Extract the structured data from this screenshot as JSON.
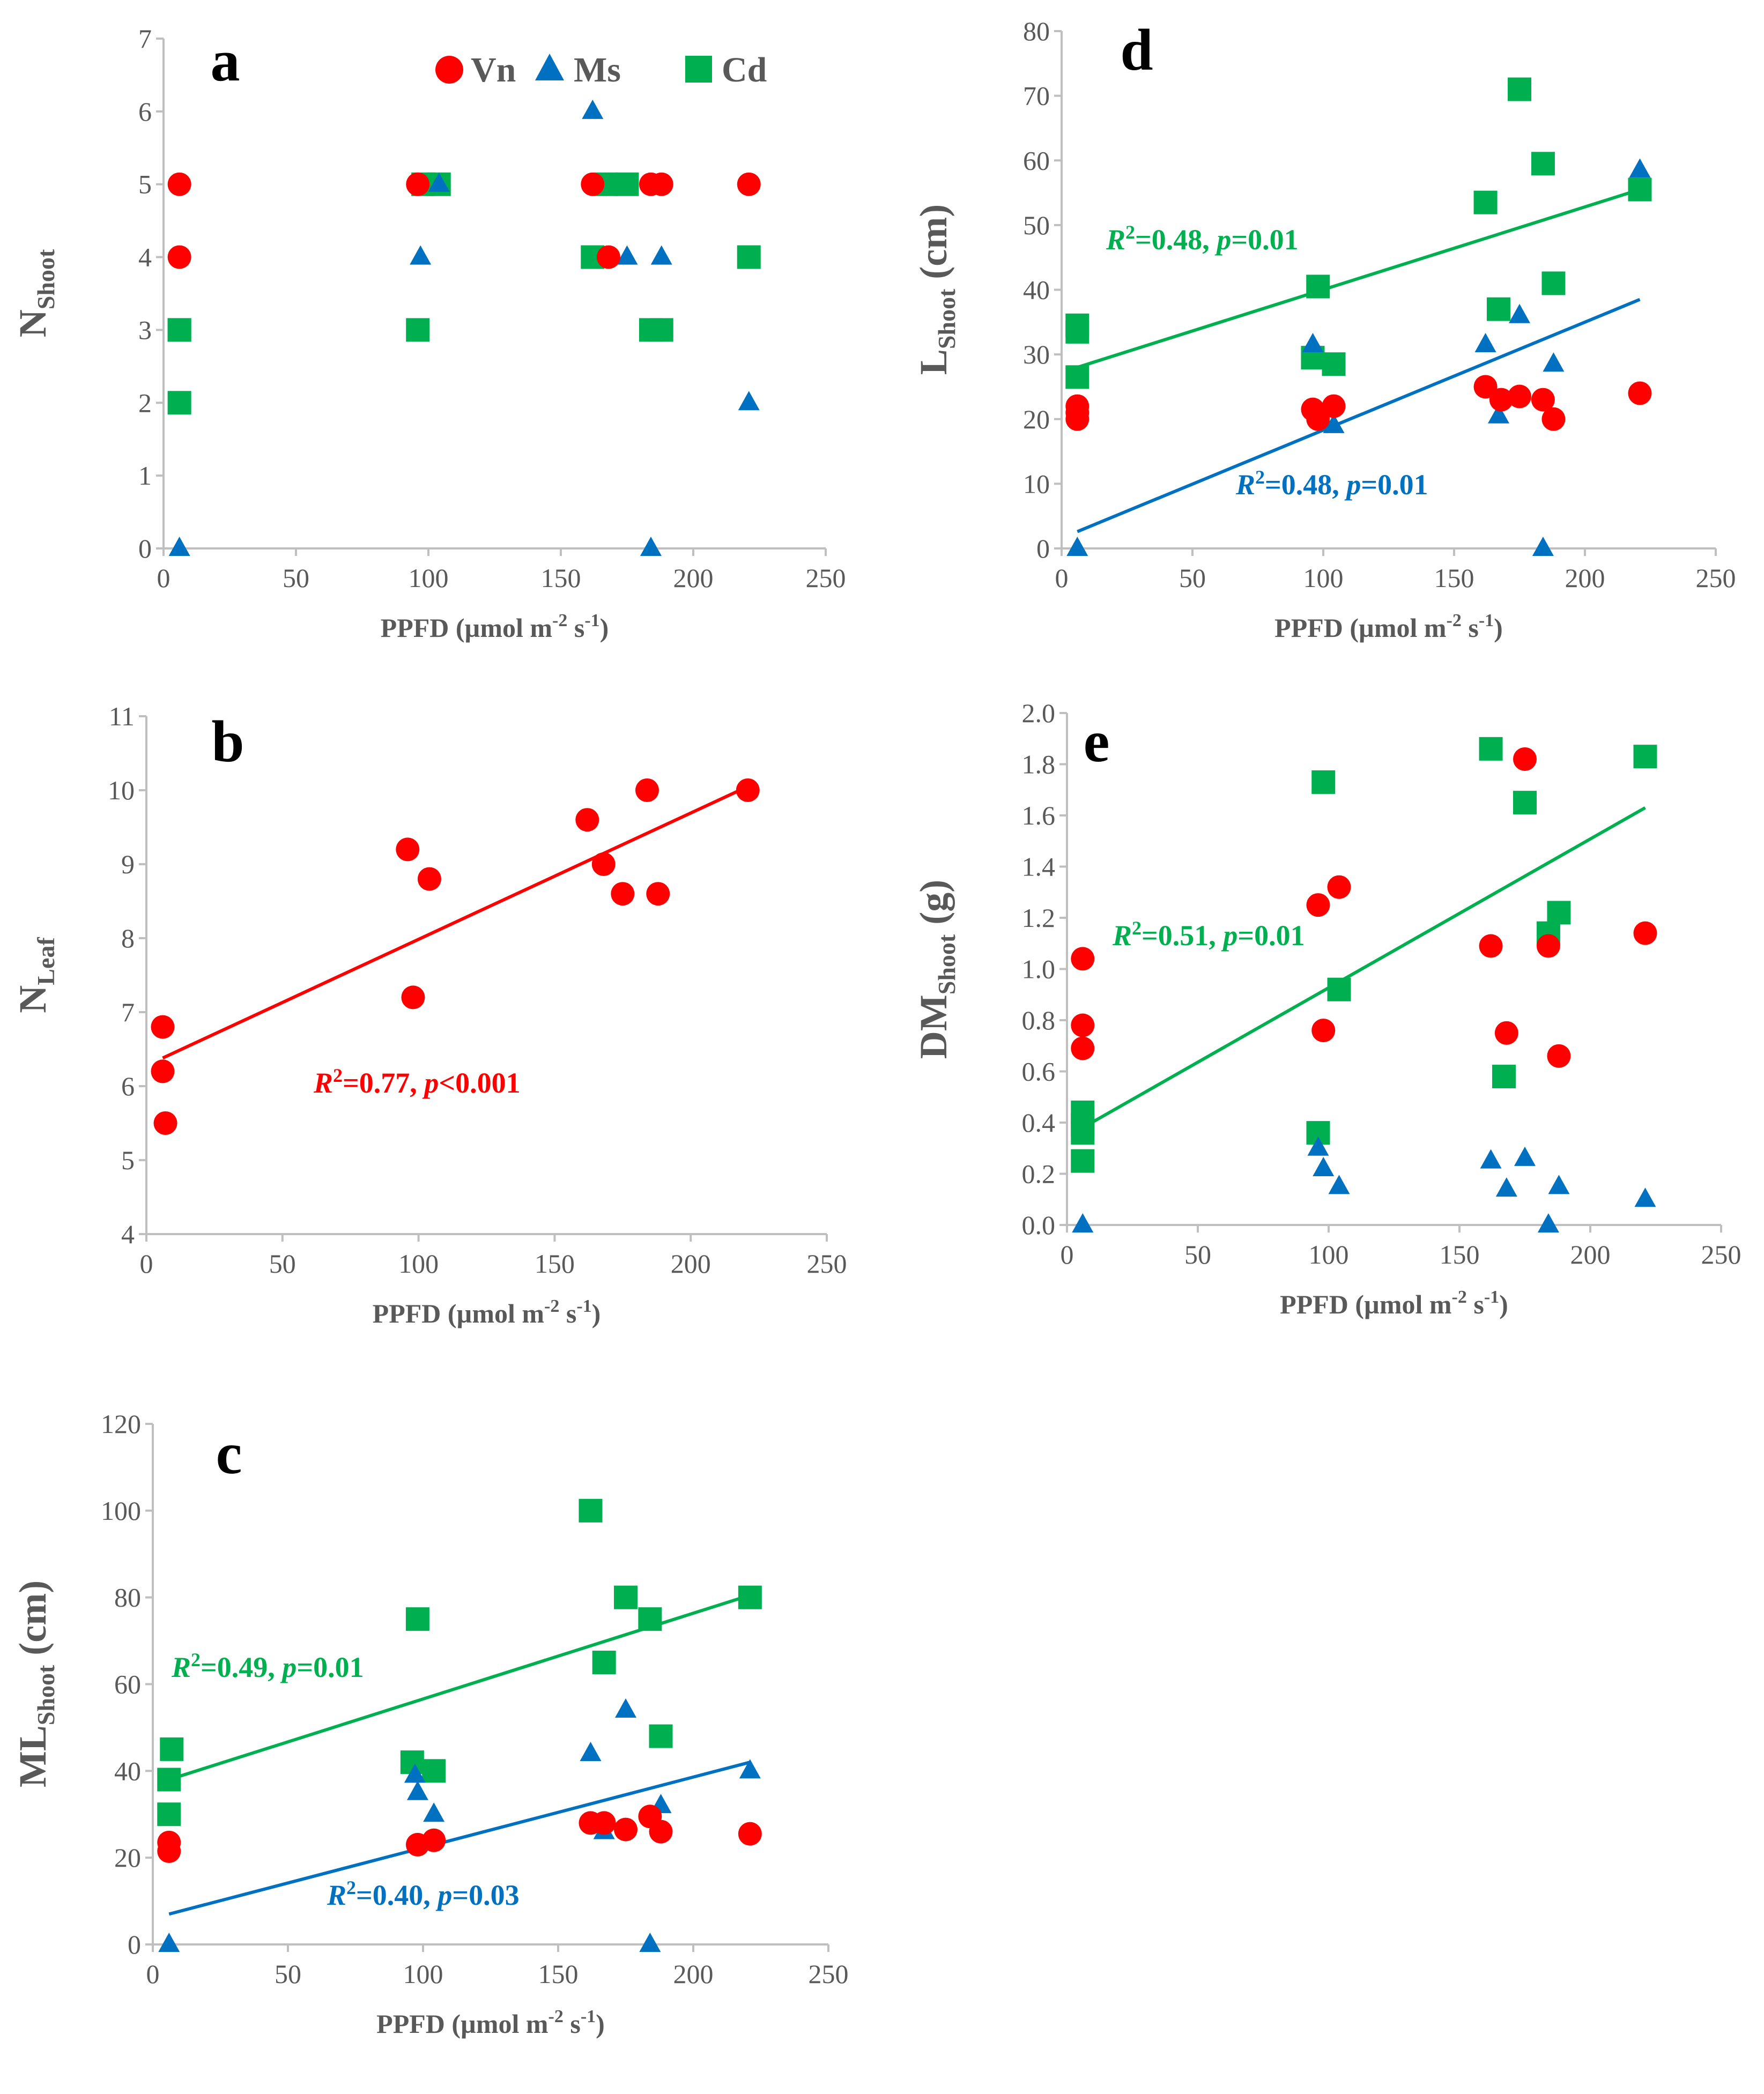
{
  "colors": {
    "Vn": "#ff0000",
    "Ms": "#0070c0",
    "Cd": "#00b050",
    "axis": "#bfbfbf",
    "text": "#595959"
  },
  "legend": {
    "Vn": "Vn",
    "Ms": "Ms",
    "Cd": "Cd"
  },
  "xlabel": "PPFD (µmol m",
  "xlabel_sup1": "-2",
  "xlabel_mid": " s",
  "xlabel_sup2": "-1",
  "xlabel_end": ")",
  "chart_data": [
    {
      "id": "a",
      "type": "scatter",
      "label": "a",
      "ylabel_main": "N",
      "ylabel_sub": "Shoot",
      "xlim": [
        0,
        250
      ],
      "ylim": [
        0,
        7
      ],
      "xticks": [
        0,
        50,
        100,
        150,
        200,
        250
      ],
      "yticks": [
        0,
        1,
        2,
        3,
        4,
        5,
        6,
        7
      ],
      "series": [
        {
          "name": "Vn",
          "marker": "circle",
          "x": [
            6,
            6,
            96,
            162,
            168,
            184,
            188,
            221
          ],
          "y": [
            5,
            4,
            5,
            5,
            4,
            5,
            5,
            5
          ]
        },
        {
          "name": "Ms",
          "marker": "triangle",
          "x": [
            6,
            97,
            104,
            162,
            175,
            184,
            188,
            221
          ],
          "y": [
            0,
            4,
            5,
            6,
            4,
            0,
            4,
            2
          ]
        },
        {
          "name": "Cd",
          "marker": "square",
          "x": [
            6,
            6,
            6,
            96,
            98,
            104,
            162,
            167,
            175,
            184,
            188,
            221
          ],
          "y": [
            3,
            3,
            2,
            3,
            5,
            5,
            4,
            5,
            5,
            3,
            3,
            4
          ]
        }
      ],
      "trendlines": [],
      "annotations": []
    },
    {
      "id": "b",
      "type": "scatter",
      "label": "b",
      "ylabel_main": "N",
      "ylabel_sub": "Leaf",
      "xlim": [
        0,
        250
      ],
      "ylim": [
        4,
        11
      ],
      "xticks": [
        0,
        50,
        100,
        150,
        200,
        250
      ],
      "yticks": [
        4,
        5,
        6,
        7,
        8,
        9,
        10,
        11
      ],
      "series": [
        {
          "name": "Vn",
          "marker": "circle",
          "x": [
            6,
            6,
            7,
            96,
            98,
            104,
            162,
            168,
            175,
            184,
            188,
            221
          ],
          "y": [
            6.8,
            6.2,
            5.5,
            9.2,
            7.2,
            8.8,
            9.6,
            9.0,
            8.6,
            10.0,
            8.6,
            10.0
          ]
        }
      ],
      "trendlines": [
        {
          "series": "Vn",
          "x": [
            6,
            221
          ],
          "y": [
            6.38,
            10.05
          ]
        }
      ],
      "annotations": [
        {
          "series": "Vn",
          "r2": "0.77",
          "p_op": "<",
          "p": "0.001"
        }
      ]
    },
    {
      "id": "c",
      "type": "scatter",
      "label": "c",
      "ylabel_main": "ML",
      "ylabel_sub": "Shoot",
      "ylabel_unit": " (cm)",
      "xlim": [
        0,
        250
      ],
      "ylim": [
        0,
        120
      ],
      "xticks": [
        0,
        50,
        100,
        150,
        200,
        250
      ],
      "yticks": [
        0,
        20,
        40,
        60,
        80,
        100,
        120
      ],
      "series": [
        {
          "name": "Vn",
          "marker": "circle",
          "x": [
            6,
            6,
            98,
            104,
            162,
            167,
            175,
            184,
            188,
            221
          ],
          "y": [
            23.5,
            21.5,
            23,
            24,
            28,
            28,
            26.5,
            29.5,
            26,
            25.5
          ]
        },
        {
          "name": "Ms",
          "marker": "triangle",
          "x": [
            6,
            97,
            98,
            104,
            162,
            167,
            175,
            184,
            188,
            221
          ],
          "y": [
            0,
            39,
            35,
            30,
            44,
            26,
            54,
            0,
            32,
            40
          ]
        },
        {
          "name": "Cd",
          "marker": "square",
          "x": [
            6,
            6,
            7,
            96,
            98,
            104,
            162,
            167,
            175,
            184,
            188,
            221
          ],
          "y": [
            38,
            30,
            45,
            42,
            75,
            40,
            100,
            65,
            80,
            75,
            48,
            80
          ]
        }
      ],
      "trendlines": [
        {
          "series": "Cd",
          "x": [
            6,
            221
          ],
          "y": [
            38,
            80.5
          ]
        },
        {
          "series": "Ms",
          "x": [
            6,
            221
          ],
          "y": [
            7,
            42
          ]
        }
      ],
      "annotations": [
        {
          "series": "Cd",
          "r2": "0.49",
          "p_op": "=",
          "p": "0.01"
        },
        {
          "series": "Ms",
          "r2": "0.40",
          "p_op": "=",
          "p": "0.03"
        }
      ]
    },
    {
      "id": "d",
      "type": "scatter",
      "label": "d",
      "ylabel_main": "L",
      "ylabel_sub": "Shoot",
      "ylabel_unit": " (cm)",
      "xlim": [
        0,
        250
      ],
      "ylim": [
        0,
        80
      ],
      "xticks": [
        0,
        50,
        100,
        150,
        200,
        250
      ],
      "yticks": [
        0,
        10,
        20,
        30,
        40,
        50,
        60,
        70,
        80
      ],
      "series": [
        {
          "name": "Vn",
          "marker": "circle",
          "x": [
            6,
            6,
            6,
            96,
            98,
            104,
            162,
            168,
            175,
            184,
            188,
            221
          ],
          "y": [
            22,
            21,
            20,
            21.5,
            20,
            22,
            25,
            23,
            23.5,
            23,
            20,
            24
          ]
        },
        {
          "name": "Ms",
          "marker": "triangle",
          "x": [
            6,
            96,
            104,
            162,
            167,
            175,
            184,
            188,
            221
          ],
          "y": [
            0,
            31.5,
            19,
            31.5,
            20.5,
            36,
            0,
            28.5,
            58.5
          ]
        },
        {
          "name": "Cd",
          "marker": "square",
          "x": [
            6,
            6,
            6,
            96,
            98,
            104,
            162,
            167,
            175,
            184,
            188,
            221
          ],
          "y": [
            34.5,
            33.5,
            26.5,
            29.5,
            40.5,
            28.5,
            53.5,
            37,
            71,
            59.5,
            41,
            55.5
          ]
        }
      ],
      "trendlines": [
        {
          "series": "Cd",
          "x": [
            6,
            221
          ],
          "y": [
            28,
            55.5
          ]
        },
        {
          "series": "Ms",
          "x": [
            6,
            221
          ],
          "y": [
            2.6,
            38.5
          ]
        }
      ],
      "annotations": [
        {
          "series": "Cd",
          "r2": "0.48",
          "p_op": "=",
          "p": "0.01"
        },
        {
          "series": "Ms",
          "r2": "0.48",
          "p_op": "=",
          "p": "0.01"
        }
      ]
    },
    {
      "id": "e",
      "type": "scatter",
      "label": "e",
      "ylabel_main": "DM",
      "ylabel_sub": "Shoot",
      "ylabel_unit": " (g)",
      "xlim": [
        0,
        250
      ],
      "ylim": [
        0,
        2
      ],
      "xticks": [
        0,
        50,
        100,
        150,
        200,
        250
      ],
      "yticks": [
        0.0,
        0.2,
        0.4,
        0.6,
        0.8,
        1.0,
        1.2,
        1.4,
        1.6,
        1.8,
        2.0
      ],
      "series": [
        {
          "name": "Vn",
          "marker": "circle",
          "x": [
            6,
            6,
            6,
            96,
            98,
            104,
            162,
            168,
            175,
            184,
            188,
            221
          ],
          "y": [
            1.04,
            0.78,
            0.69,
            1.25,
            0.76,
            1.32,
            1.09,
            0.75,
            1.82,
            1.09,
            0.66,
            1.14
          ]
        },
        {
          "name": "Ms",
          "marker": "triangle",
          "x": [
            6,
            96,
            98,
            104,
            162,
            168,
            175,
            184,
            188,
            221
          ],
          "y": [
            0,
            0.3,
            0.22,
            0.15,
            0.25,
            0.14,
            0.26,
            0,
            0.15,
            0.1
          ]
        },
        {
          "name": "Cd",
          "marker": "square",
          "x": [
            6,
            6,
            6,
            6,
            96,
            98,
            104,
            162,
            167,
            175,
            184,
            188,
            221
          ],
          "y": [
            0.44,
            0.39,
            0.36,
            0.25,
            0.36,
            1.73,
            0.92,
            1.86,
            0.58,
            1.65,
            1.14,
            1.22,
            1.83
          ]
        }
      ],
      "trendlines": [
        {
          "series": "Cd",
          "x": [
            6,
            221
          ],
          "y": [
            0.38,
            1.63
          ]
        }
      ],
      "annotations": [
        {
          "series": "Cd",
          "r2": "0.51",
          "p_op": "=",
          "p": "0.01"
        }
      ]
    }
  ]
}
